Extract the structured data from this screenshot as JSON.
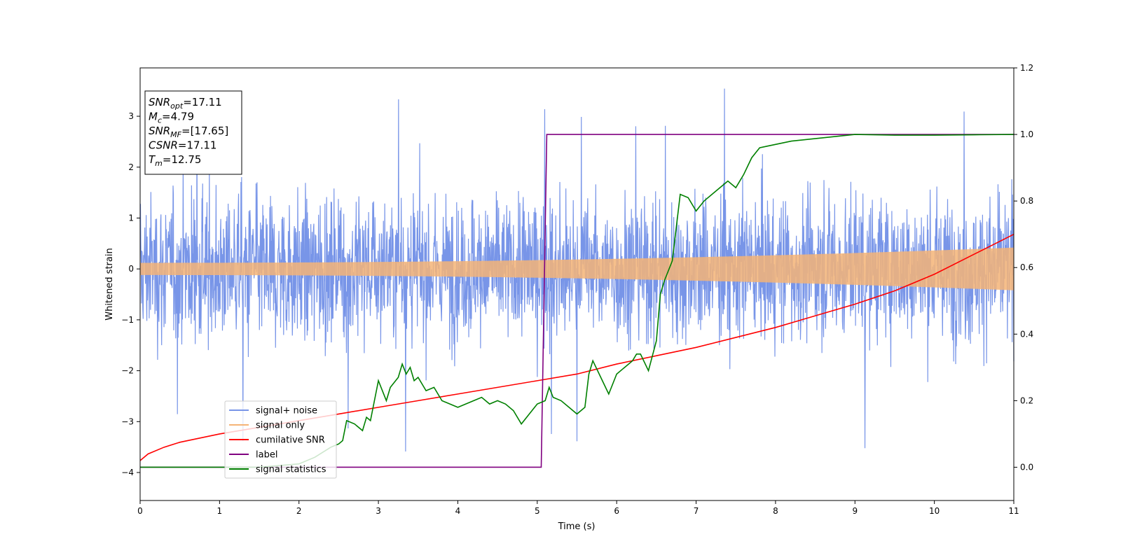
{
  "chart_data": {
    "type": "line",
    "xlabel": "Time (s)",
    "ylabel": "Whitened strain",
    "xlim": [
      0,
      11
    ],
    "ylim_left": [
      -4.55,
      3.95
    ],
    "ylim_right": [
      -0.1,
      1.2
    ],
    "x_ticks": [
      0,
      1,
      2,
      3,
      4,
      5,
      6,
      7,
      8,
      9,
      10,
      11
    ],
    "y_ticks_left": [
      -4,
      -3,
      -2,
      -1,
      0,
      1,
      2,
      3
    ],
    "y_ticks_right": [
      0.0,
      0.2,
      0.4,
      0.6,
      0.8,
      1.0,
      1.2
    ],
    "grid": false,
    "legend_position": "lower-left",
    "annotation": {
      "lines": [
        {
          "name": "SNR",
          "sub": "opt",
          "value": "=17.11"
        },
        {
          "name": "M",
          "sub": "c",
          "value": "=4.79"
        },
        {
          "name": "SNR",
          "sub": "MF",
          "value": "=[17.65]"
        },
        {
          "name": "CSNR",
          "sub": "",
          "value": "=17.11"
        },
        {
          "name": "T",
          "sub": "m",
          "value": "=12.75"
        }
      ]
    },
    "series": [
      {
        "name": "signal+ noise",
        "color": "#7895e8",
        "axis": "left",
        "style": "noise",
        "amplitude_typical": 1.6,
        "amplitude_max": 3.6,
        "amplitude_min": -4.15
      },
      {
        "name": "signal only",
        "color": "#f5b477",
        "axis": "left",
        "style": "chirp",
        "amplitude_start": 0.12,
        "amplitude_end": 0.42
      },
      {
        "name": "cumilative SNR",
        "color": "#ff0000",
        "axis": "right",
        "x": [
          0,
          0.1,
          0.3,
          0.5,
          1,
          1.5,
          2,
          2.5,
          3,
          3.5,
          4,
          4.5,
          5,
          5.5,
          6,
          6.5,
          7,
          7.5,
          8,
          8.5,
          9,
          9.5,
          10,
          10.5,
          11
        ],
        "y": [
          0.02,
          0.04,
          0.06,
          0.075,
          0.1,
          0.12,
          0.14,
          0.16,
          0.18,
          0.2,
          0.22,
          0.24,
          0.26,
          0.28,
          0.31,
          0.335,
          0.36,
          0.39,
          0.42,
          0.455,
          0.49,
          0.53,
          0.58,
          0.64,
          0.7
        ]
      },
      {
        "name": "label",
        "color": "#800080",
        "axis": "right",
        "x": [
          0,
          5.05,
          5.12,
          11
        ],
        "y": [
          0,
          0,
          1,
          1
        ]
      },
      {
        "name": "signal statistics",
        "color": "#008000",
        "axis": "right",
        "x": [
          0,
          0.5,
          1,
          1.5,
          2,
          2.2,
          2.4,
          2.5,
          2.55,
          2.6,
          2.7,
          2.8,
          2.85,
          2.9,
          3.0,
          3.1,
          3.15,
          3.25,
          3.3,
          3.35,
          3.4,
          3.45,
          3.5,
          3.6,
          3.7,
          3.8,
          3.9,
          4.0,
          4.1,
          4.2,
          4.3,
          4.4,
          4.5,
          4.6,
          4.7,
          4.8,
          4.9,
          5.0,
          5.1,
          5.15,
          5.2,
          5.3,
          5.4,
          5.5,
          5.6,
          5.65,
          5.7,
          5.8,
          5.9,
          6.0,
          6.1,
          6.2,
          6.25,
          6.3,
          6.4,
          6.5,
          6.55,
          6.6,
          6.7,
          6.8,
          6.9,
          7.0,
          7.1,
          7.2,
          7.3,
          7.4,
          7.5,
          7.6,
          7.7,
          7.8,
          7.9,
          8.0,
          8.2,
          8.4,
          8.6,
          8.8,
          9.0,
          9.5,
          10.0,
          10.5,
          11.0
        ],
        "y": [
          0.0,
          0.0,
          0.0,
          0.0,
          0.01,
          0.03,
          0.06,
          0.07,
          0.08,
          0.14,
          0.13,
          0.11,
          0.15,
          0.14,
          0.26,
          0.2,
          0.24,
          0.27,
          0.31,
          0.28,
          0.3,
          0.26,
          0.27,
          0.23,
          0.24,
          0.2,
          0.19,
          0.18,
          0.19,
          0.2,
          0.21,
          0.19,
          0.2,
          0.19,
          0.17,
          0.13,
          0.16,
          0.19,
          0.2,
          0.24,
          0.21,
          0.2,
          0.18,
          0.16,
          0.18,
          0.28,
          0.32,
          0.27,
          0.22,
          0.28,
          0.3,
          0.32,
          0.34,
          0.34,
          0.29,
          0.38,
          0.52,
          0.56,
          0.62,
          0.82,
          0.81,
          0.77,
          0.8,
          0.82,
          0.84,
          0.86,
          0.84,
          0.88,
          0.93,
          0.96,
          0.965,
          0.97,
          0.98,
          0.985,
          0.99,
          0.995,
          1.0,
          0.998,
          0.998,
          0.999,
          1.0
        ]
      }
    ]
  }
}
